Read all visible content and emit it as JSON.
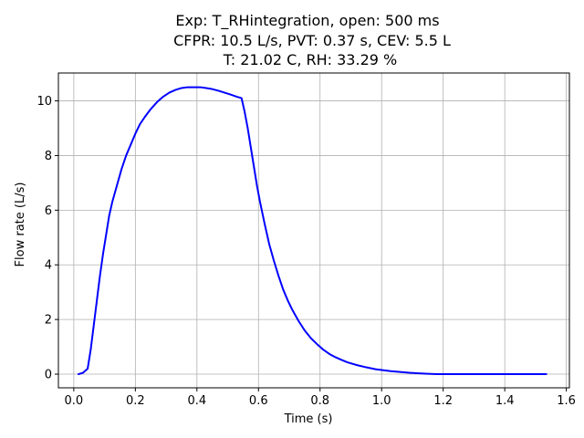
{
  "chart_data": {
    "type": "line",
    "title_lines": [
      "Exp: T_RHintegration, open: 500 ms",
      "CFPR: 10.5 L/s, PVT: 0.37 s, CEV: 5.5 L",
      "T: 21.02 C, RH: 33.29 %"
    ],
    "xlabel": "Time (s)",
    "ylabel": "Flow rate (L/s)",
    "xlim": [
      -0.05,
      1.61
    ],
    "ylim": [
      -0.5,
      11.02
    ],
    "xticks": [
      0.0,
      0.2,
      0.4,
      0.6,
      0.8,
      1.0,
      1.2,
      1.4,
      1.6
    ],
    "xtick_labels": [
      "0.0",
      "0.2",
      "0.4",
      "0.6",
      "0.8",
      "1.0",
      "1.2",
      "1.4",
      "1.6"
    ],
    "yticks": [
      0,
      2,
      4,
      6,
      8,
      10
    ],
    "ytick_labels": [
      "0",
      "2",
      "4",
      "6",
      "8",
      "10"
    ],
    "grid": true,
    "series": [
      {
        "color": "#0000ff",
        "x": [
          0.015,
          0.03,
          0.045,
          0.055,
          0.065,
          0.075,
          0.085,
          0.095,
          0.105,
          0.115,
          0.125,
          0.14,
          0.155,
          0.17,
          0.185,
          0.2,
          0.215,
          0.23,
          0.25,
          0.27,
          0.29,
          0.31,
          0.33,
          0.35,
          0.37,
          0.39,
          0.41,
          0.43,
          0.45,
          0.47,
          0.49,
          0.51,
          0.53,
          0.545,
          0.555,
          0.565,
          0.575,
          0.585,
          0.595,
          0.605,
          0.62,
          0.635,
          0.65,
          0.665,
          0.68,
          0.695,
          0.71,
          0.73,
          0.75,
          0.77,
          0.79,
          0.81,
          0.83,
          0.85,
          0.87,
          0.89,
          0.92,
          0.95,
          0.98,
          1.0,
          1.03,
          1.06,
          1.09,
          1.12,
          1.15,
          1.18,
          1.25,
          1.35,
          1.45,
          1.535
        ],
        "y": [
          0.0,
          0.05,
          0.2,
          0.9,
          1.8,
          2.7,
          3.6,
          4.4,
          5.1,
          5.8,
          6.3,
          6.9,
          7.5,
          8.0,
          8.4,
          8.8,
          9.15,
          9.4,
          9.7,
          9.95,
          10.15,
          10.3,
          10.4,
          10.47,
          10.5,
          10.5,
          10.5,
          10.47,
          10.43,
          10.37,
          10.3,
          10.23,
          10.15,
          10.1,
          9.6,
          9.0,
          8.3,
          7.6,
          6.9,
          6.3,
          5.5,
          4.75,
          4.15,
          3.6,
          3.1,
          2.7,
          2.35,
          1.95,
          1.6,
          1.32,
          1.1,
          0.9,
          0.74,
          0.62,
          0.52,
          0.43,
          0.33,
          0.25,
          0.18,
          0.15,
          0.11,
          0.08,
          0.05,
          0.03,
          0.015,
          0.0,
          0.0,
          0.0,
          0.0,
          0.0
        ]
      }
    ]
  }
}
